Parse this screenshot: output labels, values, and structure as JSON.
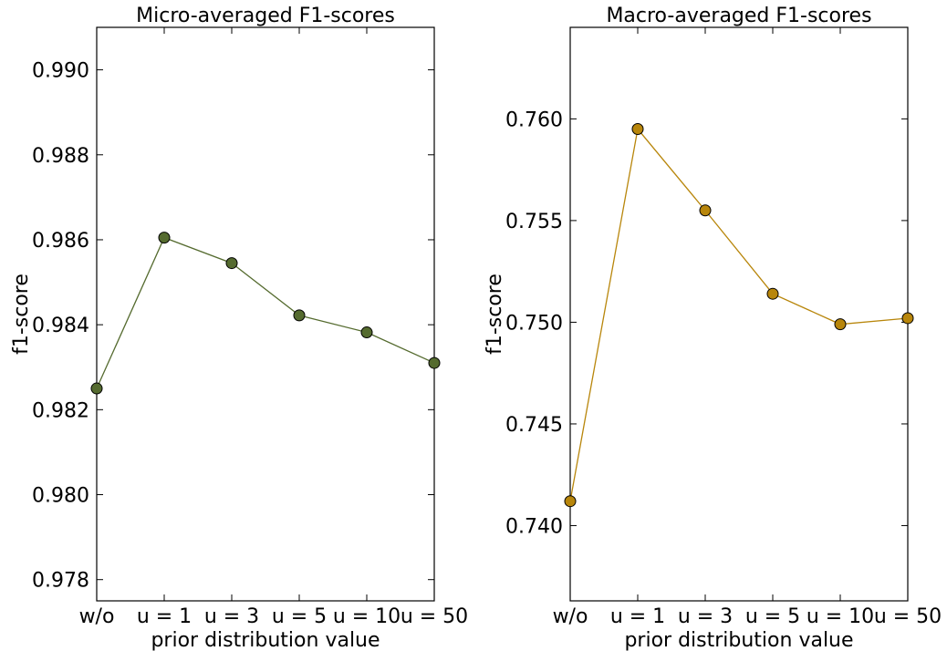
{
  "chart_data": [
    {
      "type": "line",
      "title": "Micro-averaged F1-scores",
      "xlabel": "prior distribution value",
      "ylabel": "f1-score",
      "categories": [
        "w/o",
        "u = 1",
        "u = 3",
        "u = 5",
        "u = 10",
        "u = 50"
      ],
      "ylim": [
        0.9775,
        0.991
      ],
      "yticks": [
        0.978,
        0.98,
        0.982,
        0.984,
        0.986,
        0.988,
        0.99
      ],
      "ytick_labels": [
        "0.978",
        "0.980",
        "0.982",
        "0.984",
        "0.986",
        "0.988",
        "0.990"
      ],
      "series": [
        {
          "values": [
            0.9825,
            0.98605,
            0.98545,
            0.98422,
            0.98382,
            0.9831
          ],
          "color": "#556b2f"
        }
      ],
      "grid": false
    },
    {
      "type": "line",
      "title": "Macro-averaged F1-scores",
      "xlabel": "prior distribution value",
      "ylabel": "f1-score",
      "categories": [
        "w/o",
        "u = 1",
        "u = 3",
        "u = 5",
        "u = 10",
        "u = 50"
      ],
      "ylim": [
        0.7363,
        0.7645
      ],
      "yticks": [
        0.74,
        0.745,
        0.75,
        0.755,
        0.76
      ],
      "ytick_labels": [
        "0.740",
        "0.745",
        "0.750",
        "0.755",
        "0.760"
      ],
      "series": [
        {
          "values": [
            0.7412,
            0.7595,
            0.7555,
            0.7514,
            0.7499,
            0.7502
          ],
          "color": "#b8860b"
        }
      ],
      "grid": false
    }
  ]
}
